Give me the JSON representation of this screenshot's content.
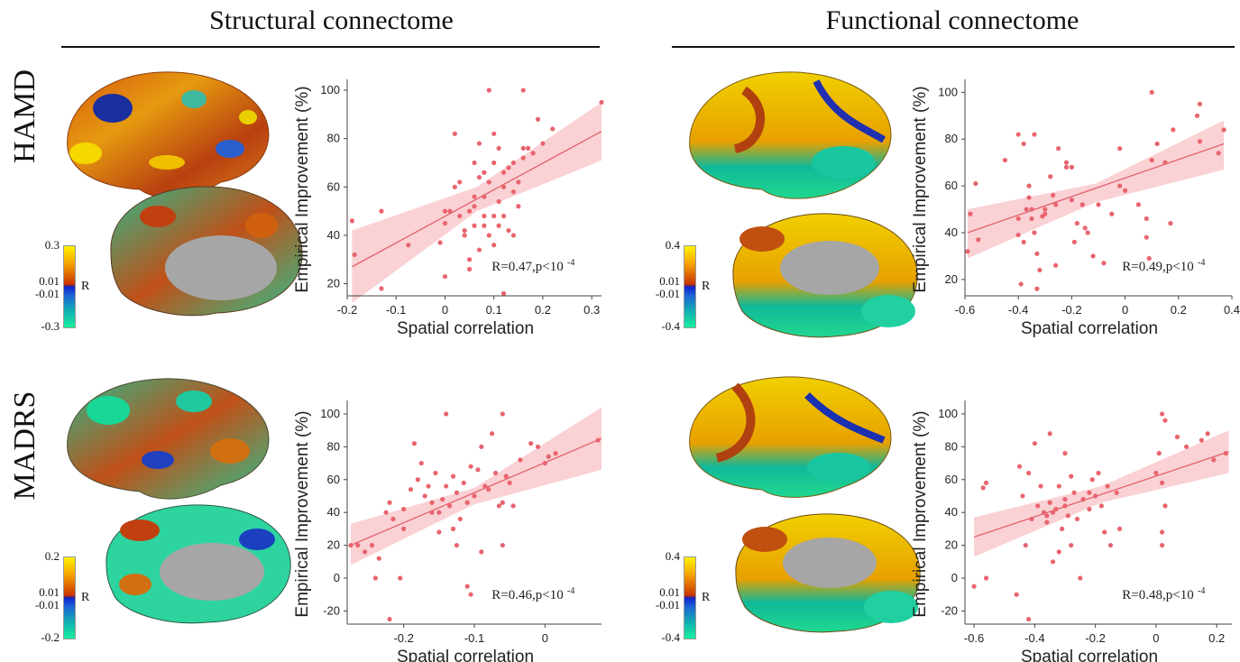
{
  "columns": [
    {
      "title": "Structural connectome"
    },
    {
      "title": "Functional connectome"
    }
  ],
  "rows": [
    {
      "label": "HAMD"
    },
    {
      "label": "MADRS"
    }
  ],
  "colorbars": [
    {
      "max": "0.3",
      "pos": "0.01",
      "neg": "-0.01",
      "min": "-0.3",
      "label": "R"
    },
    {
      "max": "0.4",
      "pos": "0.01",
      "neg": "-0.01",
      "min": "-0.4",
      "label": "R"
    },
    {
      "max": "0.2",
      "pos": "0.01",
      "neg": "-0.01",
      "min": "-0.2",
      "label": "R"
    },
    {
      "max": "0.4",
      "pos": "0.01",
      "neg": "-0.01",
      "min": "-0.4",
      "label": "R"
    }
  ],
  "colors": {
    "points": "#e8646e",
    "fit_line": "#e05a66",
    "ci_band": "#f9c9cd",
    "cortex_mask": "#a6a6a6"
  },
  "chart_data": [
    {
      "type": "scatter",
      "panel": "Structural connectome / HAMD",
      "xlabel": "Spatial correlation",
      "ylabel": "Empirical Improvement (%)",
      "xlim": [
        -0.2,
        0.32
      ],
      "ylim": [
        15,
        103
      ],
      "xticks": [
        "-0.2",
        "-0.1",
        "0",
        "0.1",
        "0.2",
        "0.3"
      ],
      "xtick_values": [
        -0.2,
        -0.1,
        0,
        0.1,
        0.2,
        0.3
      ],
      "yticks": [
        "20",
        "40",
        "60",
        "80",
        "100"
      ],
      "ytick_values": [
        20,
        40,
        60,
        80,
        100
      ],
      "annotation": "R=0.47,p<10-4",
      "annotation_main": "R=0.47,p<10",
      "annotation_exp": "-4",
      "fit": {
        "x": [
          -0.19,
          0.32
        ],
        "y": [
          27,
          83
        ]
      },
      "ci": {
        "x": [
          -0.19,
          0.065,
          0.32
        ],
        "lower": [
          12,
          50,
          71
        ],
        "upper": [
          42,
          60,
          95
        ]
      },
      "points": [
        [
          -0.19,
          46
        ],
        [
          -0.185,
          32
        ],
        [
          -0.13,
          18
        ],
        [
          -0.13,
          50
        ],
        [
          -0.075,
          36
        ],
        [
          -0.01,
          37
        ],
        [
          0.0,
          23
        ],
        [
          0.0,
          45
        ],
        [
          0.01,
          50
        ],
        [
          0.02,
          82
        ],
        [
          0.02,
          60
        ],
        [
          0.03,
          48
        ],
        [
          0.03,
          62
        ],
        [
          0.04,
          40
        ],
        [
          0.05,
          26
        ],
        [
          0.05,
          30
        ],
        [
          0.05,
          50
        ],
        [
          0.06,
          56
        ],
        [
          0.06,
          70
        ],
        [
          0.06,
          44
        ],
        [
          0.07,
          64
        ],
        [
          0.07,
          78
        ],
        [
          0.07,
          34
        ],
        [
          0.08,
          48
        ],
        [
          0.08,
          56
        ],
        [
          0.08,
          66
        ],
        [
          0.09,
          100
        ],
        [
          0.09,
          62
        ],
        [
          0.09,
          40
        ],
        [
          0.1,
          48
        ],
        [
          0.1,
          70
        ],
        [
          0.1,
          82
        ],
        [
          0.1,
          36
        ],
        [
          0.11,
          54
        ],
        [
          0.11,
          76
        ],
        [
          0.11,
          44
        ],
        [
          0.12,
          48
        ],
        [
          0.12,
          16
        ],
        [
          0.12,
          60
        ],
        [
          0.13,
          68
        ],
        [
          0.13,
          42
        ],
        [
          0.14,
          58
        ],
        [
          0.14,
          40
        ],
        [
          0.15,
          62
        ],
        [
          0.15,
          52
        ],
        [
          0.16,
          100
        ],
        [
          0.16,
          76
        ],
        [
          0.17,
          76
        ],
        [
          0.18,
          74
        ],
        [
          0.19,
          88
        ],
        [
          0.2,
          78
        ],
        [
          0.22,
          84
        ],
        [
          0.32,
          95
        ],
        [
          0.0,
          50
        ],
        [
          0.04,
          42
        ],
        [
          0.06,
          52
        ],
        [
          0.08,
          44
        ],
        [
          0.12,
          66
        ],
        [
          0.14,
          70
        ],
        [
          0.16,
          72
        ]
      ]
    },
    {
      "type": "scatter",
      "panel": "Functional connectome / HAMD",
      "xlabel": "Spatial correlation",
      "ylabel": "Empirical Improvement (%)",
      "xlim": [
        -0.6,
        0.4
      ],
      "ylim": [
        13,
        104
      ],
      "xticks": [
        "-0.6",
        "-0.4",
        "-0.2",
        "0",
        "0.2",
        "0.4"
      ],
      "xtick_values": [
        -0.6,
        -0.4,
        -0.2,
        0,
        0.2,
        0.4
      ],
      "yticks": [
        "20",
        "40",
        "60",
        "80",
        "100"
      ],
      "ytick_values": [
        20,
        40,
        60,
        80,
        100
      ],
      "annotation": "R=0.49,p<10-4",
      "annotation_main": "R=0.49,p<10",
      "annotation_exp": "-4",
      "fit": {
        "x": [
          -0.59,
          0.37
        ],
        "y": [
          40,
          78
        ]
      },
      "ci": {
        "x": [
          -0.59,
          -0.11,
          0.37
        ],
        "lower": [
          29,
          53,
          67
        ],
        "upper": [
          50,
          61,
          88
        ]
      },
      "points": [
        [
          -0.59,
          32
        ],
        [
          -0.58,
          48
        ],
        [
          -0.56,
          61
        ],
        [
          -0.55,
          37
        ],
        [
          -0.45,
          71
        ],
        [
          -0.4,
          82
        ],
        [
          -0.4,
          46
        ],
        [
          -0.39,
          18
        ],
        [
          -0.38,
          36
        ],
        [
          -0.38,
          78
        ],
        [
          -0.37,
          50
        ],
        [
          -0.36,
          55
        ],
        [
          -0.36,
          60
        ],
        [
          -0.35,
          46
        ],
        [
          -0.35,
          50
        ],
        [
          -0.34,
          82
        ],
        [
          -0.34,
          40
        ],
        [
          -0.33,
          31
        ],
        [
          -0.33,
          16
        ],
        [
          -0.32,
          24
        ],
        [
          -0.31,
          47
        ],
        [
          -0.3,
          48
        ],
        [
          -0.28,
          64
        ],
        [
          -0.27,
          56
        ],
        [
          -0.26,
          26
        ],
        [
          -0.26,
          52
        ],
        [
          -0.25,
          76
        ],
        [
          -0.22,
          70
        ],
        [
          -0.2,
          68
        ],
        [
          -0.2,
          54
        ],
        [
          -0.19,
          36
        ],
        [
          -0.18,
          44
        ],
        [
          -0.16,
          52
        ],
        [
          -0.15,
          42
        ],
        [
          -0.14,
          40
        ],
        [
          -0.12,
          30
        ],
        [
          -0.1,
          52
        ],
        [
          -0.08,
          27
        ],
        [
          -0.05,
          48
        ],
        [
          -0.02,
          76
        ],
        [
          -0.02,
          60
        ],
        [
          0.0,
          58
        ],
        [
          0.05,
          52
        ],
        [
          0.08,
          46
        ],
        [
          0.08,
          38
        ],
        [
          0.09,
          29
        ],
        [
          0.1,
          100
        ],
        [
          0.1,
          71
        ],
        [
          0.12,
          78
        ],
        [
          0.15,
          70
        ],
        [
          0.17,
          44
        ],
        [
          0.18,
          84
        ],
        [
          0.27,
          90
        ],
        [
          0.28,
          95
        ],
        [
          0.28,
          79
        ],
        [
          0.35,
          74
        ],
        [
          0.37,
          84
        ],
        [
          -0.4,
          39
        ],
        [
          -0.3,
          50
        ],
        [
          -0.22,
          68
        ]
      ]
    },
    {
      "type": "scatter",
      "panel": "Structural connectome / MADRS",
      "xlabel": "Spatial correlation",
      "ylabel": "Empirical Improvement (%)",
      "xlim": [
        -0.28,
        0.08
      ],
      "ylim": [
        -28,
        106
      ],
      "xticks": [
        "-0.2",
        "-0.1",
        "0"
      ],
      "xtick_values": [
        -0.2,
        -0.1,
        0
      ],
      "yticks": [
        "-20",
        "0",
        "20",
        "40",
        "60",
        "80",
        "100"
      ],
      "ytick_values": [
        -20,
        0,
        20,
        40,
        60,
        80,
        100
      ],
      "annotation": "R=0.46,p<10-4",
      "annotation_main": "R=0.46,p<10",
      "annotation_exp": "-4",
      "fit": {
        "x": [
          -0.275,
          0.08
        ],
        "y": [
          20,
          85
        ]
      },
      "ci": {
        "x": [
          -0.275,
          -0.1,
          0.08
        ],
        "lower": [
          8,
          45,
          66
        ],
        "upper": [
          33,
          55,
          104
        ]
      },
      "points": [
        [
          -0.275,
          20
        ],
        [
          -0.265,
          20
        ],
        [
          -0.255,
          16
        ],
        [
          -0.245,
          20
        ],
        [
          -0.24,
          0
        ],
        [
          -0.235,
          12
        ],
        [
          -0.225,
          40
        ],
        [
          -0.22,
          -25
        ],
        [
          -0.22,
          46
        ],
        [
          -0.215,
          36
        ],
        [
          -0.205,
          0
        ],
        [
          -0.2,
          42
        ],
        [
          -0.19,
          54
        ],
        [
          -0.185,
          82
        ],
        [
          -0.18,
          60
        ],
        [
          -0.175,
          70
        ],
        [
          -0.17,
          50
        ],
        [
          -0.165,
          56
        ],
        [
          -0.16,
          46
        ],
        [
          -0.155,
          64
        ],
        [
          -0.15,
          40
        ],
        [
          -0.15,
          28
        ],
        [
          -0.145,
          48
        ],
        [
          -0.14,
          56
        ],
        [
          -0.14,
          100
        ],
        [
          -0.135,
          44
        ],
        [
          -0.13,
          62
        ],
        [
          -0.13,
          30
        ],
        [
          -0.125,
          52
        ],
        [
          -0.12,
          36
        ],
        [
          -0.115,
          58
        ],
        [
          -0.11,
          -5
        ],
        [
          -0.11,
          46
        ],
        [
          -0.105,
          -10
        ],
        [
          -0.105,
          68
        ],
        [
          -0.1,
          50
        ],
        [
          -0.095,
          66
        ],
        [
          -0.09,
          16
        ],
        [
          -0.09,
          80
        ],
        [
          -0.085,
          56
        ],
        [
          -0.08,
          54
        ],
        [
          -0.075,
          88
        ],
        [
          -0.07,
          64
        ],
        [
          -0.065,
          44
        ],
        [
          -0.06,
          46
        ],
        [
          -0.06,
          100
        ],
        [
          -0.055,
          62
        ],
        [
          -0.05,
          58
        ],
        [
          -0.045,
          44
        ],
        [
          -0.035,
          72
        ],
        [
          -0.02,
          82
        ],
        [
          -0.01,
          80
        ],
        [
          0.0,
          70
        ],
        [
          0.005,
          74
        ],
        [
          0.015,
          76
        ],
        [
          0.075,
          84
        ],
        [
          -0.2,
          30
        ],
        [
          -0.16,
          40
        ],
        [
          -0.125,
          20
        ],
        [
          -0.06,
          20
        ]
      ]
    },
    {
      "type": "scatter",
      "panel": "Functional connectome / MADRS",
      "xlabel": "Spatial correlation",
      "ylabel": "Empirical Improvement (%)",
      "xlim": [
        -0.63,
        0.25
      ],
      "ylim": [
        -28,
        106
      ],
      "xticks": [
        "-0.6",
        "-0.4",
        "-0.2",
        "0",
        "0.2"
      ],
      "xtick_values": [
        -0.6,
        -0.4,
        -0.2,
        0,
        0.2
      ],
      "yticks": [
        "-20",
        "0",
        "20",
        "40",
        "60",
        "80",
        "100"
      ],
      "ytick_values": [
        -20,
        0,
        20,
        40,
        60,
        80,
        100
      ],
      "annotation": "R=0.48,p<10-4",
      "annotation_main": "R=0.48,p<10",
      "annotation_exp": "-4",
      "fit": {
        "x": [
          -0.6,
          0.24
        ],
        "y": [
          25,
          77
        ]
      },
      "ci": {
        "x": [
          -0.6,
          -0.18,
          0.24
        ],
        "lower": [
          13,
          46,
          64
        ],
        "upper": [
          37,
          56,
          90
        ]
      },
      "points": [
        [
          -0.6,
          -5
        ],
        [
          -0.57,
          55
        ],
        [
          -0.56,
          0
        ],
        [
          -0.56,
          58
        ],
        [
          -0.46,
          -10
        ],
        [
          -0.45,
          68
        ],
        [
          -0.44,
          50
        ],
        [
          -0.43,
          20
        ],
        [
          -0.42,
          -25
        ],
        [
          -0.42,
          64
        ],
        [
          -0.41,
          36
        ],
        [
          -0.4,
          82
        ],
        [
          -0.39,
          44
        ],
        [
          -0.38,
          56
        ],
        [
          -0.37,
          40
        ],
        [
          -0.36,
          34
        ],
        [
          -0.35,
          46
        ],
        [
          -0.35,
          88
        ],
        [
          -0.34,
          10
        ],
        [
          -0.34,
          40
        ],
        [
          -0.33,
          42
        ],
        [
          -0.32,
          16
        ],
        [
          -0.32,
          56
        ],
        [
          -0.31,
          30
        ],
        [
          -0.3,
          76
        ],
        [
          -0.3,
          44
        ],
        [
          -0.29,
          38
        ],
        [
          -0.28,
          20
        ],
        [
          -0.28,
          62
        ],
        [
          -0.27,
          52
        ],
        [
          -0.26,
          36
        ],
        [
          -0.25,
          0
        ],
        [
          -0.24,
          48
        ],
        [
          -0.22,
          42
        ],
        [
          -0.21,
          60
        ],
        [
          -0.2,
          50
        ],
        [
          -0.19,
          64
        ],
        [
          -0.18,
          44
        ],
        [
          -0.17,
          28
        ],
        [
          -0.16,
          56
        ],
        [
          -0.15,
          20
        ],
        [
          -0.13,
          52
        ],
        [
          -0.12,
          30
        ],
        [
          0.0,
          64
        ],
        [
          0.01,
          76
        ],
        [
          0.02,
          20
        ],
        [
          0.02,
          28
        ],
        [
          0.02,
          58
        ],
        [
          0.02,
          100
        ],
        [
          0.03,
          44
        ],
        [
          0.03,
          96
        ],
        [
          0.07,
          86
        ],
        [
          0.1,
          80
        ],
        [
          0.15,
          84
        ],
        [
          0.17,
          88
        ],
        [
          0.19,
          72
        ],
        [
          0.23,
          76
        ],
        [
          -0.36,
          38
        ],
        [
          -0.3,
          48
        ],
        [
          -0.22,
          52
        ]
      ]
    }
  ]
}
